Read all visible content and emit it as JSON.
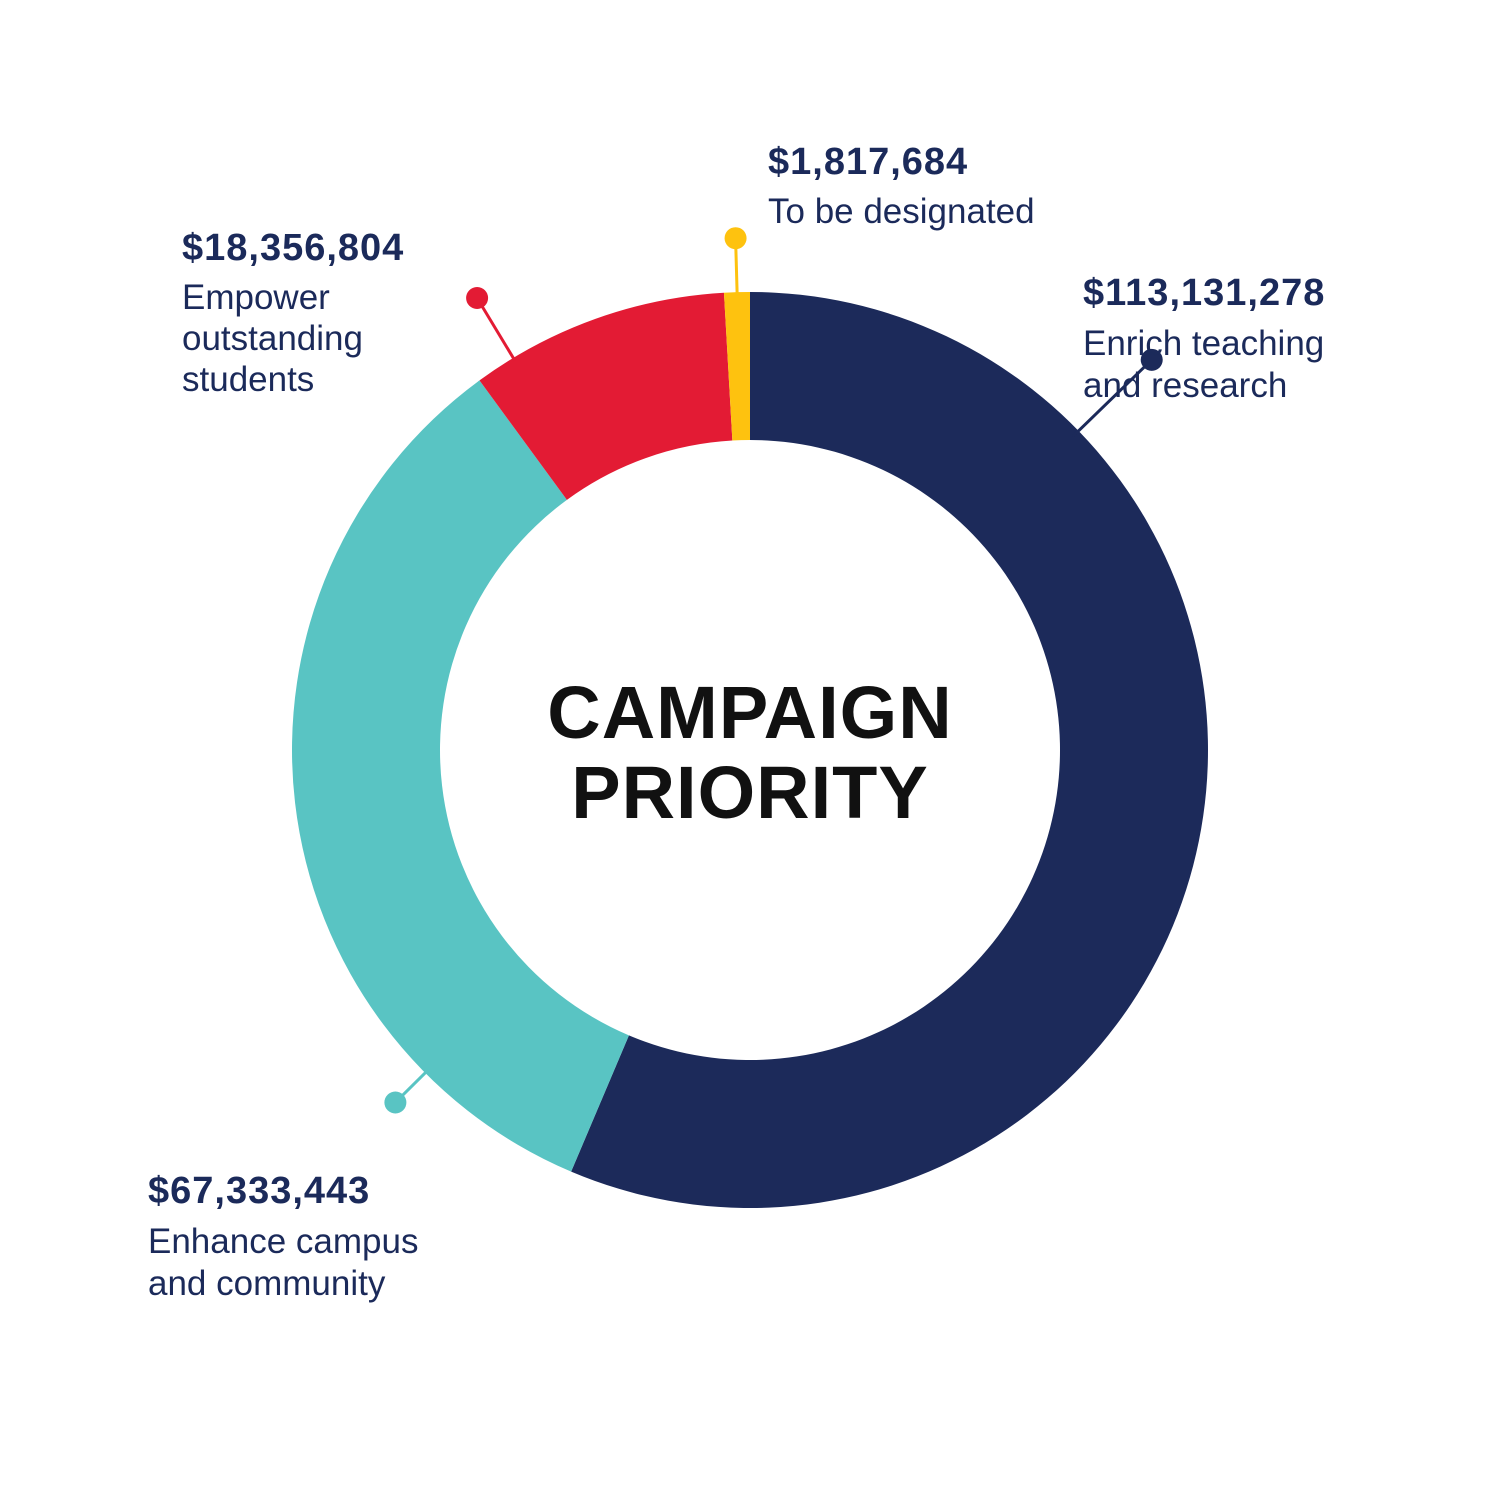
{
  "chart_data": {
    "type": "pie",
    "title": "CAMPAIGN PRIORITY",
    "title_lines": [
      "CAMPAIGN",
      "PRIORITY"
    ],
    "slices": [
      {
        "id": "teaching",
        "value": 113131278,
        "amount_label": "$113,131,278",
        "description": [
          "Enrich teaching",
          "and research"
        ],
        "color": "#1c2a5a"
      },
      {
        "id": "campus",
        "value": 67333443,
        "amount_label": "$67,333,443",
        "description": [
          "Enhance campus",
          "and community"
        ],
        "color": "#59c4c3"
      },
      {
        "id": "students",
        "value": 18356804,
        "amount_label": "$18,356,804",
        "description": [
          "Empower",
          "outstanding",
          "students"
        ],
        "color": "#e31b34"
      },
      {
        "id": "designated",
        "value": 1817684,
        "amount_label": "$1,817,684",
        "description": [
          "To be designated"
        ],
        "color": "#fec20f"
      }
    ]
  }
}
